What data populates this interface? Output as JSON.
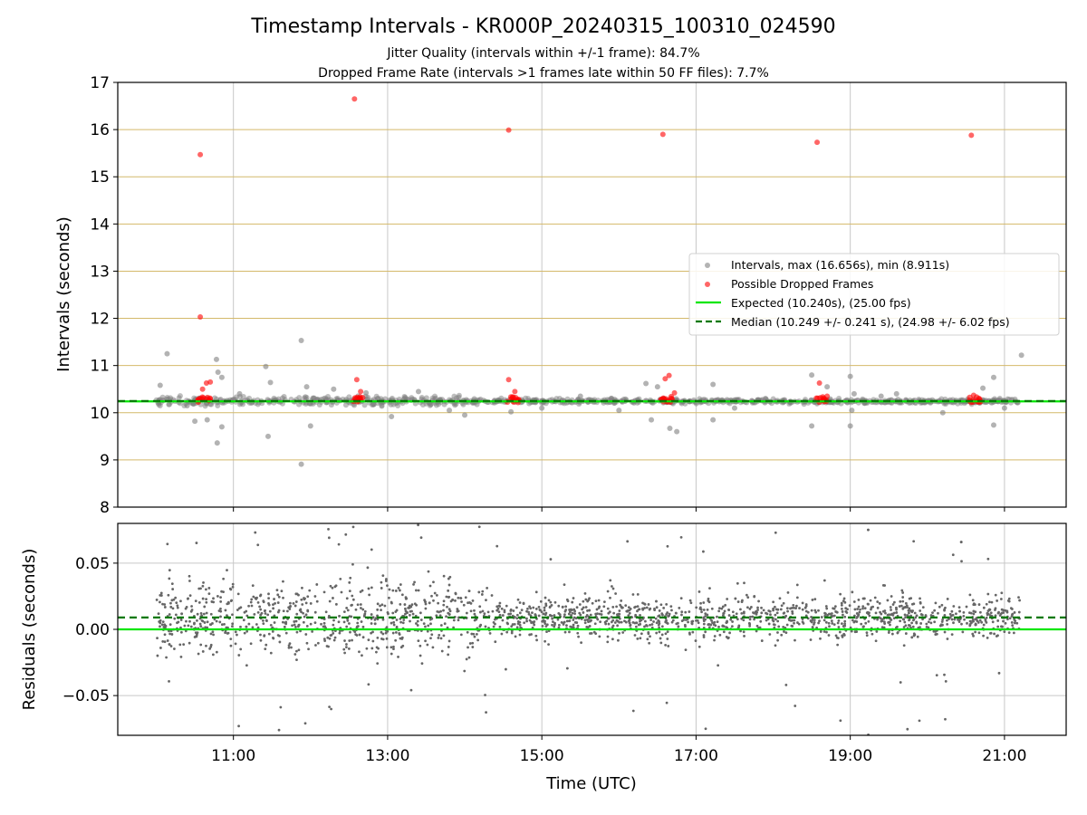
{
  "chart_data": {
    "type": "scatter",
    "title": "Timestamp Intervals - KR000P_20240315_100310_024590",
    "subtitle_lines": [
      "Jitter Quality (intervals within +/-1 frame): 84.7%",
      "Dropped Frame Rate (intervals >1 frames late within 50 FF files): 7.7%"
    ],
    "x_axis": {
      "label": "Time (UTC)",
      "range_hours": [
        9.5,
        21.8
      ],
      "ticks": [
        {
          "value": 11,
          "label": "11:00"
        },
        {
          "value": 13,
          "label": "13:00"
        },
        {
          "value": 15,
          "label": "15:00"
        },
        {
          "value": 17,
          "label": "17:00"
        },
        {
          "value": 19,
          "label": "19:00"
        },
        {
          "value": 21,
          "label": "21:00"
        }
      ]
    },
    "top_panel": {
      "ylabel": "Intervals (seconds)",
      "ylim": [
        8,
        17
      ],
      "yticks": [
        {
          "value": 8,
          "label": "8"
        },
        {
          "value": 9,
          "label": "9"
        },
        {
          "value": 10,
          "label": "10"
        },
        {
          "value": 11,
          "label": "11"
        },
        {
          "value": 12,
          "label": "12"
        },
        {
          "value": 13,
          "label": "13"
        },
        {
          "value": 14,
          "label": "14"
        },
        {
          "value": 15,
          "label": "15"
        },
        {
          "value": 16,
          "label": "16"
        },
        {
          "value": 17,
          "label": "17"
        }
      ],
      "horizontal_grid_color": "#d4b96a",
      "vertical_grid_color": "#c8c8c8",
      "expected_line": 10.24,
      "median_line": 10.249,
      "intervals_points": [
        [
          10.05,
          10.58
        ],
        [
          10.14,
          11.25
        ],
        [
          10.4,
          10.15
        ],
        [
          10.5,
          9.82
        ],
        [
          10.66,
          9.85
        ],
        [
          10.79,
          9.36
        ],
        [
          10.78,
          11.13
        ],
        [
          10.8,
          10.86
        ],
        [
          10.85,
          10.75
        ],
        [
          10.85,
          9.7
        ],
        [
          11.08,
          10.4
        ],
        [
          11.42,
          10.98
        ],
        [
          11.45,
          9.5
        ],
        [
          11.48,
          10.64
        ],
        [
          11.88,
          11.53
        ],
        [
          11.88,
          8.91
        ],
        [
          11.95,
          10.55
        ],
        [
          12.0,
          9.72
        ],
        [
          12.3,
          10.5
        ],
        [
          12.72,
          10.42
        ],
        [
          13.05,
          9.92
        ],
        [
          13.4,
          10.45
        ],
        [
          13.8,
          10.05
        ],
        [
          14.0,
          9.95
        ],
        [
          14.6,
          10.02
        ],
        [
          15.0,
          10.1
        ],
        [
          15.5,
          10.35
        ],
        [
          15.9,
          10.3
        ],
        [
          16.0,
          10.05
        ],
        [
          16.35,
          10.62
        ],
        [
          16.42,
          9.85
        ],
        [
          16.5,
          10.55
        ],
        [
          16.58,
          10.3
        ],
        [
          16.66,
          9.67
        ],
        [
          16.75,
          9.6
        ],
        [
          17.22,
          10.6
        ],
        [
          17.22,
          9.85
        ],
        [
          17.5,
          10.1
        ],
        [
          17.9,
          10.3
        ],
        [
          18.5,
          10.8
        ],
        [
          18.5,
          9.72
        ],
        [
          18.7,
          10.55
        ],
        [
          19.0,
          10.77
        ],
        [
          19.0,
          9.72
        ],
        [
          19.02,
          10.05
        ],
        [
          19.05,
          10.4
        ],
        [
          19.4,
          10.35
        ],
        [
          19.6,
          10.4
        ],
        [
          20.2,
          10.0
        ],
        [
          20.72,
          10.52
        ],
        [
          20.86,
          10.75
        ],
        [
          20.86,
          9.74
        ],
        [
          21.22,
          11.22
        ],
        [
          21.0,
          10.1
        ]
      ],
      "dropped_points": [
        [
          10.57,
          15.47
        ],
        [
          10.57,
          12.03
        ],
        [
          10.65,
          10.63
        ],
        [
          10.6,
          10.5
        ],
        [
          10.7,
          10.65
        ],
        [
          12.57,
          16.65
        ],
        [
          12.6,
          10.7
        ],
        [
          12.65,
          10.45
        ],
        [
          14.57,
          15.99
        ],
        [
          14.57,
          10.7
        ],
        [
          14.65,
          10.45
        ],
        [
          16.57,
          15.9
        ],
        [
          16.6,
          10.72
        ],
        [
          16.65,
          10.79
        ],
        [
          16.72,
          10.42
        ],
        [
          18.57,
          15.73
        ],
        [
          18.6,
          10.63
        ],
        [
          18.7,
          10.35
        ],
        [
          20.57,
          15.88
        ],
        [
          20.6,
          10.37
        ]
      ],
      "legend": {
        "placement": "center-right",
        "entries": [
          {
            "label": "Intervals, max (16.656s), min (8.911s)",
            "color": "#808080",
            "marker": "dot"
          },
          {
            "label": "Possible Dropped Frames",
            "color": "#ff0000",
            "marker": "dot"
          },
          {
            "label": "Expected (10.240s), (25.00 fps)",
            "color": "#00e600",
            "marker": "line"
          },
          {
            "label": "Median (10.249 +/- 0.241 s), (24.98 +/- 6.02 fps)",
            "color": "#007800",
            "marker": "dashed"
          }
        ]
      }
    },
    "bottom_panel": {
      "ylabel": "Residuals (seconds)",
      "ylim": [
        -0.08,
        0.08
      ],
      "yticks": [
        {
          "value": 0.05,
          "label": "0.05"
        },
        {
          "value": 0.0,
          "label": "0.00"
        },
        {
          "value": -0.05,
          "label": "−0.05"
        }
      ],
      "grid_color": "#c8c8c8",
      "expected_line": 0.0,
      "median_line": 0.009,
      "points_color": "#666666"
    }
  }
}
